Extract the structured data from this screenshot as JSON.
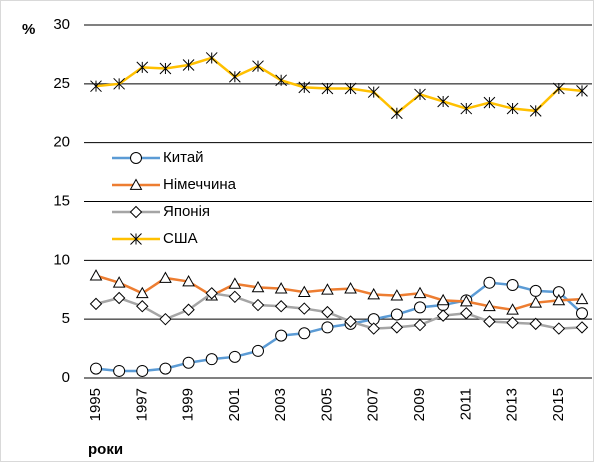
{
  "chart_data": {
    "type": "line",
    "y_label": "%",
    "x_label": "роки",
    "categories": [
      "1995",
      null,
      "1997",
      null,
      "1999",
      null,
      "2001",
      null,
      "2003",
      null,
      "2005",
      null,
      "2007",
      null,
      "2009",
      null,
      "2011",
      null,
      "2013",
      null,
      "2015",
      null
    ],
    "series": [
      {
        "name": "Китай",
        "color": "#5b9bd5",
        "marker": "circle",
        "values": [
          0.8,
          0.6,
          0.6,
          0.8,
          1.3,
          1.6,
          1.8,
          2.3,
          3.6,
          3.8,
          4.3,
          4.6,
          5.0,
          5.4,
          6.0,
          6.2,
          6.6,
          8.1,
          7.9,
          7.4,
          7.3,
          5.5
        ]
      },
      {
        "name": "Німеччина",
        "color": "#ed7d31",
        "marker": "triangle",
        "values": [
          8.7,
          8.1,
          7.2,
          8.5,
          8.2,
          7.0,
          8.0,
          7.7,
          7.6,
          7.3,
          7.5,
          7.6,
          7.1,
          7.0,
          7.2,
          6.6,
          6.5,
          6.1,
          5.8,
          6.4,
          6.6,
          6.7
        ]
      },
      {
        "name": "Японія",
        "color": "#a5a5a5",
        "marker": "diamond",
        "values": [
          6.3,
          6.8,
          6.1,
          5.0,
          5.8,
          7.2,
          6.9,
          6.2,
          6.1,
          5.9,
          5.6,
          4.8,
          4.2,
          4.3,
          4.5,
          5.3,
          5.5,
          4.8,
          4.7,
          4.6,
          4.2,
          4.3
        ]
      },
      {
        "name": "США",
        "color": "#ffc000",
        "marker": "asterisk",
        "values": [
          24.8,
          25.0,
          26.4,
          26.3,
          26.6,
          27.2,
          25.6,
          26.5,
          25.3,
          24.7,
          24.6,
          24.6,
          24.3,
          22.5,
          24.1,
          23.5,
          22.9,
          23.4,
          22.9,
          22.7,
          24.6,
          24.4
        ]
      }
    ],
    "ylim": [
      0,
      30
    ],
    "yticks": [
      0,
      5,
      10,
      15,
      20,
      25,
      30
    ],
    "grid": true,
    "legend": "left"
  }
}
